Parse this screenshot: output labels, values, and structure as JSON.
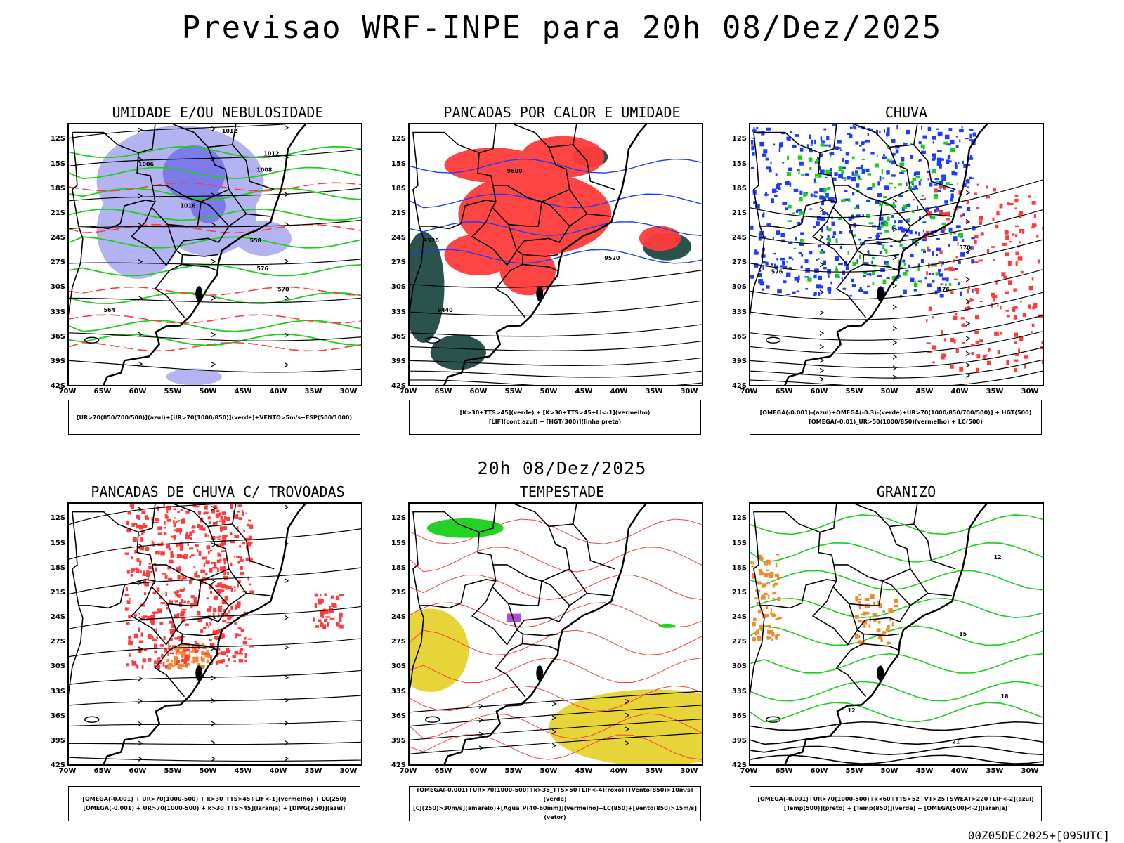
{
  "title": "Previsao WRF-INPE  para 20h 08/Dez/2025",
  "mid_title": "20h 08/Dez/2025",
  "timestamp": "00Z05DEC2025+[095UTC]",
  "axis": {
    "lat_labels": [
      "12S",
      "15S",
      "18S",
      "21S",
      "24S",
      "27S",
      "30S",
      "33S",
      "36S",
      "39S",
      "42S"
    ],
    "lon_labels": [
      "70W",
      "65W",
      "60W",
      "55W",
      "50W",
      "45W",
      "40W",
      "35W",
      "30W"
    ]
  },
  "panels": [
    {
      "id": "umidade",
      "title": "UMIDADE E/OU NEBULOSIDADE",
      "legend": [
        "[UR>70(850/700/500)](azul)+[UR>70(1000/850)](verde)+VENTO>5m/s+ESP(500/1000)"
      ],
      "contour_labels": [
        "1012",
        "1008",
        "1006",
        "1016",
        "576",
        "570",
        "564",
        "558",
        "1012"
      ]
    },
    {
      "id": "pancadas-calor",
      "title": "PANCADAS POR CALOR E UMIDADE",
      "legend": [
        "[K>30+TTS>45](verde) + [K>30+TTS>45+LI<-1](vermelho)",
        "[LIF](cont.azul) + [HGT(300)](linha preta)"
      ],
      "contour_labels": [
        "9600",
        "9520",
        "9440",
        "9520"
      ]
    },
    {
      "id": "chuva",
      "title": "CHUVA",
      "legend": [
        "[OMEGA(-0.001)-(azul)+OMEGA(-0.3)-(verde)+UR>70(1000/850/700/500)] + HGT(500)",
        "[OMEGA(-0.01)_UR>50(1000/850)(vermelho) + LC(500)"
      ],
      "contour_labels": [
        "576",
        "576",
        "570"
      ]
    },
    {
      "id": "trovoadas",
      "title": "PANCADAS DE CHUVA C/ TROVOADAS",
      "legend": [
        "[OMEGA(-0.001) + UR>70(1000-500) + k>30_TTS>45+LIF<-1](vermelho) + LC(250)",
        "[OMEGA(-0.001) + UR>70(1000-500) + k>30_TTS>45](laranja) + [DIVG(250)](azul)"
      ],
      "contour_labels": []
    },
    {
      "id": "tempestade",
      "title": "TEMPESTADE",
      "legend": [
        "[OMEGA(-0.001)+UR>70(1000-500)+k>35_TTS>50+LIF<-4](roxo)+[Vento(850)>10m/s](verde)",
        "[CJ(250)>30m/s](amarelo)+[Agua_P(40-60mm)](vermelho)+LC(850)+[Vento(850)>15m/s](vetor)"
      ],
      "contour_labels": []
    },
    {
      "id": "granizo",
      "title": "GRANIZO",
      "legend": [
        "[OMEGA(-0.001)+UR>70(1000-500)+k<60+TTS>52+VT>25+SWEAT>220+LIF<-2](azul)",
        "[Temp(500)](preto) + [Temp(850)](verde) + [OMEGA(500)<-2](laranja)"
      ],
      "contour_labels": [
        "12",
        "15",
        "21",
        "18",
        "12"
      ]
    }
  ],
  "colors": {
    "blue": "#1a3cff",
    "green": "#18d018",
    "red": "#ff3b3b",
    "lavender": "#a8a6f0",
    "darkgreen": "#1f4a44",
    "yellow": "#e6d22e",
    "orange": "#f08a2a",
    "purple": "#9a1fd0"
  }
}
